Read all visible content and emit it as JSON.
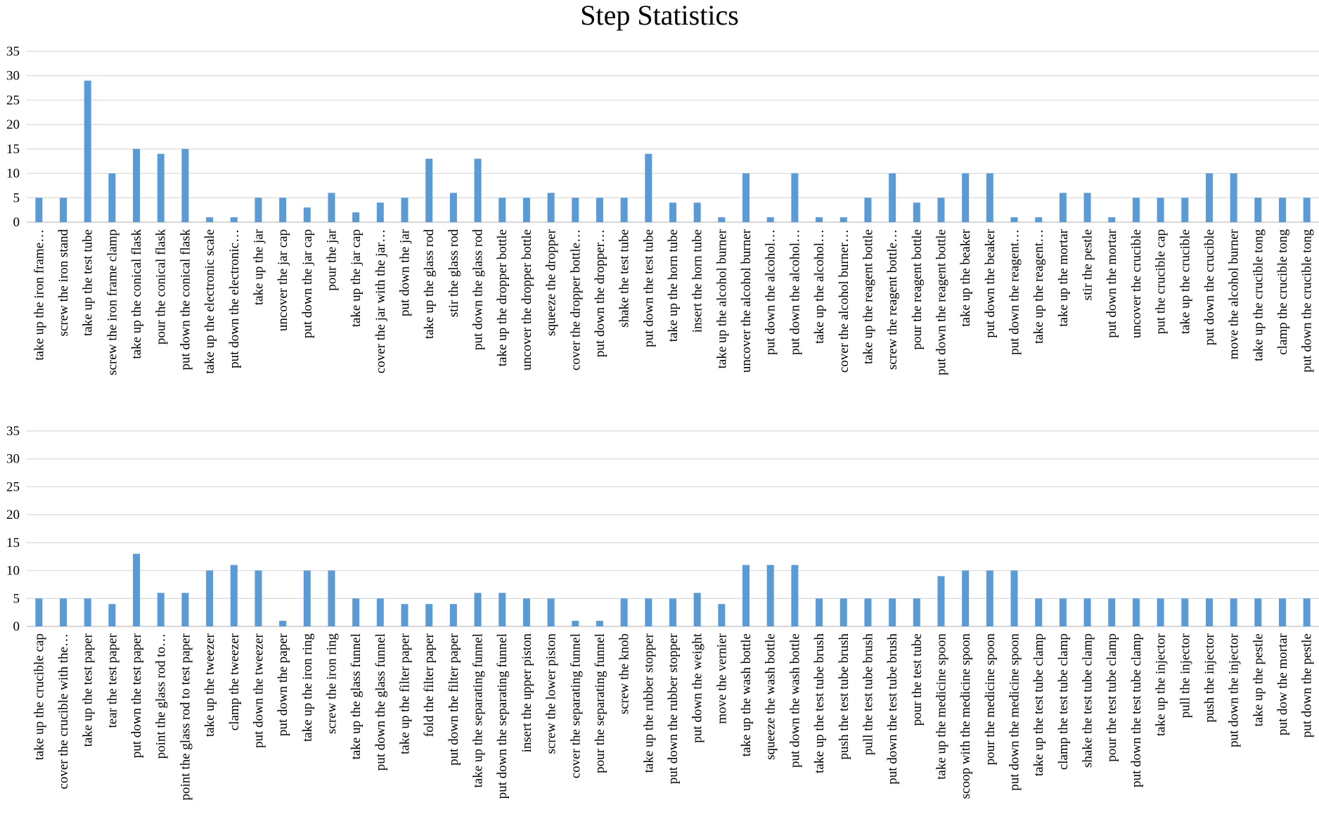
{
  "chart_data": {
    "title": "Step Statistics",
    "type": "bar",
    "bar_color": "#5b9bd5",
    "grid": true,
    "ylim": [
      0,
      35
    ],
    "yticks": [
      0,
      5,
      10,
      15,
      20,
      25,
      30,
      35
    ],
    "panels": [
      {
        "categories": [
          "take up the iron frame…",
          "screw the iron stand",
          "take up the test tube",
          "screw the iron frame clamp",
          "take up the conical flask",
          "pour the conical flask",
          "put down the conical flask",
          "take up the electronic scale",
          "put down the electronic…",
          "take up the jar",
          "uncover the jar cap",
          "put down the jar cap",
          "pour the jar",
          "take up the jar cap",
          "cover the jar with the jar…",
          "put down the jar",
          "take up the glass rod",
          "stir the glass rod",
          "put down the glass rod",
          "take up the dropper bottle",
          "uncover the dropper bottle",
          "squeeze the dropper",
          "cover the dropper bottle…",
          "put down the dropper…",
          "shake the test tube",
          "put down the test tube",
          "take up the horn tube",
          "insert the horn tube",
          "take up the alcohol burner",
          "uncover the alcohol burner",
          "put down the alcohol…",
          "put down the alcohol…",
          "take up the alcohol…",
          "cover the alcohol burner…",
          "take up the reagent bottle",
          "screw the reagent bottle…",
          "pour the reagent bottle",
          "put down the reagent bottle",
          "take up the beaker",
          "put down the beaker",
          "put down the reagent…",
          "take up the reagent…",
          "take up the mortar",
          "stir the pestle",
          "put down the mortar",
          "uncover the crucible",
          "put the crucible cap",
          "take up the crucible",
          "put down the crucible",
          "move the alcohol burner",
          "take up the crucible tong",
          "clamp the crucible tong",
          "put down the crucible tong"
        ],
        "values": [
          5,
          5,
          29,
          10,
          15,
          14,
          15,
          1,
          1,
          5,
          5,
          3,
          6,
          2,
          4,
          5,
          13,
          6,
          13,
          5,
          5,
          6,
          5,
          5,
          5,
          14,
          4,
          4,
          1,
          10,
          1,
          10,
          1,
          1,
          5,
          10,
          4,
          5,
          10,
          10,
          1,
          1,
          6,
          6,
          1,
          5,
          5,
          5,
          10,
          10,
          5,
          5,
          5
        ]
      },
      {
        "categories": [
          "take up the crucible cap",
          "cover the crucible with the…",
          "take up the test paper",
          "tear the test paper",
          "put down the test paper",
          "point the glass rod to…",
          "point the glass rod to test paper",
          "take up the tweezer",
          "clamp the tweezer",
          "put down the tweezer",
          "put down the paper",
          "take up the iron ring",
          "screw the iron ring",
          "take up the glass funnel",
          "put down the glass funnel",
          "take up the filter paper",
          "fold the filter paper",
          "put down the filter paper",
          "take up the separating funnel",
          "put down the separating funnel",
          "insert the upper piston",
          "screw the lower piston",
          "cover the separating funnel",
          "pour the separating funnel",
          "screw the knob",
          "take up the rubber stopper",
          "put down the rubber stopper",
          "put down the weight",
          "move the vernier",
          "take up the wash bottle",
          "squeeze the wash bottle",
          "put down the wash bottle",
          "take up the test tube brush",
          "push the test tube brush",
          "pull the test tube brush",
          "put down the test tube brush",
          "pour the test tube",
          "take up the medicine spoon",
          "scoop with the medicine spoon",
          "pour the medicine spoon",
          "put down the medicine spoon",
          "take up the test tube clamp",
          "clamp the test tube clamp",
          "shake the test tube clamp",
          "pour the test tube clamp",
          "put down the test tube clamp",
          "take up the injector",
          "pull the injector",
          "push the injector",
          "put down the injector",
          "take up the pestle",
          "put dow the mortar",
          "put down the pestle"
        ],
        "values": [
          5,
          5,
          5,
          4,
          13,
          6,
          6,
          10,
          11,
          10,
          1,
          10,
          10,
          5,
          5,
          4,
          4,
          4,
          6,
          6,
          5,
          5,
          1,
          1,
          5,
          5,
          5,
          6,
          4,
          11,
          11,
          11,
          5,
          5,
          5,
          5,
          5,
          9,
          10,
          10,
          10,
          5,
          5,
          5,
          5,
          5,
          5,
          5,
          5,
          5,
          5,
          5,
          5
        ]
      }
    ]
  }
}
